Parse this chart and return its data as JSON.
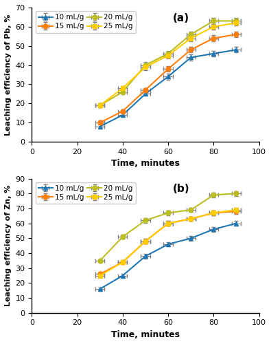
{
  "time_points": [
    30,
    40,
    50,
    60,
    70,
    80,
    90
  ],
  "panel_a": {
    "title": "(a)",
    "ylabel": "Leaching efficiency of Pb, %",
    "xlabel": "Time, minutes",
    "ylim": [
      0,
      70
    ],
    "yticks": [
      0,
      10,
      20,
      30,
      40,
      50,
      60,
      70
    ],
    "xlim": [
      0,
      100
    ],
    "xticks": [
      0,
      20,
      40,
      60,
      80,
      100
    ],
    "series": {
      "10 mL/g": {
        "values": [
          8,
          14,
          25,
          34,
          44,
          46,
          48
        ],
        "color": "#1f77b4",
        "marker": "^",
        "yerr": [
          1.0,
          1.0,
          1.0,
          1.5,
          1.5,
          1.5,
          1.5
        ],
        "xerr": 2.0
      },
      "15 mL/g": {
        "values": [
          10,
          16,
          27,
          38,
          48,
          54,
          56
        ],
        "color": "#ff7f0e",
        "marker": "o",
        "yerr": [
          1.0,
          1.0,
          1.0,
          1.5,
          1.5,
          1.5,
          1.5
        ],
        "xerr": 2.0
      },
      "20 mL/g": {
        "values": [
          19,
          26,
          40,
          46,
          56,
          63,
          63
        ],
        "color": "#bcbd22",
        "marker": "o",
        "yerr": [
          1.0,
          1.0,
          1.5,
          1.5,
          1.5,
          1.5,
          1.5
        ],
        "xerr": 2.0
      },
      "25 mL/g": {
        "values": [
          19,
          28,
          39,
          45,
          54,
          60,
          62
        ],
        "color": "#ffcc00",
        "marker": "s",
        "yerr": [
          1.0,
          1.0,
          1.5,
          1.5,
          1.5,
          1.5,
          1.5
        ],
        "xerr": 2.0
      }
    }
  },
  "panel_b": {
    "title": "(b)",
    "ylabel": "Leaching efficiency of Zn, %",
    "xlabel": "Time, minutes",
    "ylim": [
      0,
      90
    ],
    "yticks": [
      0,
      10,
      20,
      30,
      40,
      50,
      60,
      70,
      80,
      90
    ],
    "xlim": [
      0,
      100
    ],
    "xticks": [
      0,
      20,
      40,
      60,
      80,
      100
    ],
    "series": {
      "10 mL/g": {
        "values": [
          16,
          25,
          38,
          46,
          50,
          56,
          60
        ],
        "color": "#1f77b4",
        "marker": "^",
        "yerr": [
          1.0,
          1.0,
          1.5,
          1.5,
          1.5,
          1.5,
          1.5
        ],
        "xerr": 2.0
      },
      "15 mL/g": {
        "values": [
          26,
          34,
          48,
          60,
          63,
          67,
          68
        ],
        "color": "#ff7f0e",
        "marker": "o",
        "yerr": [
          1.0,
          1.0,
          1.5,
          1.5,
          1.5,
          1.5,
          1.5
        ],
        "xerr": 2.0
      },
      "20 mL/g": {
        "values": [
          35,
          51,
          62,
          67,
          69,
          79,
          80
        ],
        "color": "#bcbd22",
        "marker": "o",
        "yerr": [
          1.0,
          1.5,
          1.5,
          1.5,
          1.5,
          1.5,
          1.5
        ],
        "xerr": 2.0
      },
      "25 mL/g": {
        "values": [
          25,
          34,
          48,
          60,
          63,
          67,
          69
        ],
        "color": "#ffcc00",
        "marker": "s",
        "yerr": [
          1.0,
          1.0,
          1.5,
          1.5,
          1.5,
          1.5,
          1.5
        ],
        "xerr": 2.0
      }
    }
  },
  "legend_order": [
    "10 mL/g",
    "15 mL/g",
    "20 mL/g",
    "25 mL/g"
  ],
  "background_color": "#ffffff",
  "border_color": "#000000"
}
